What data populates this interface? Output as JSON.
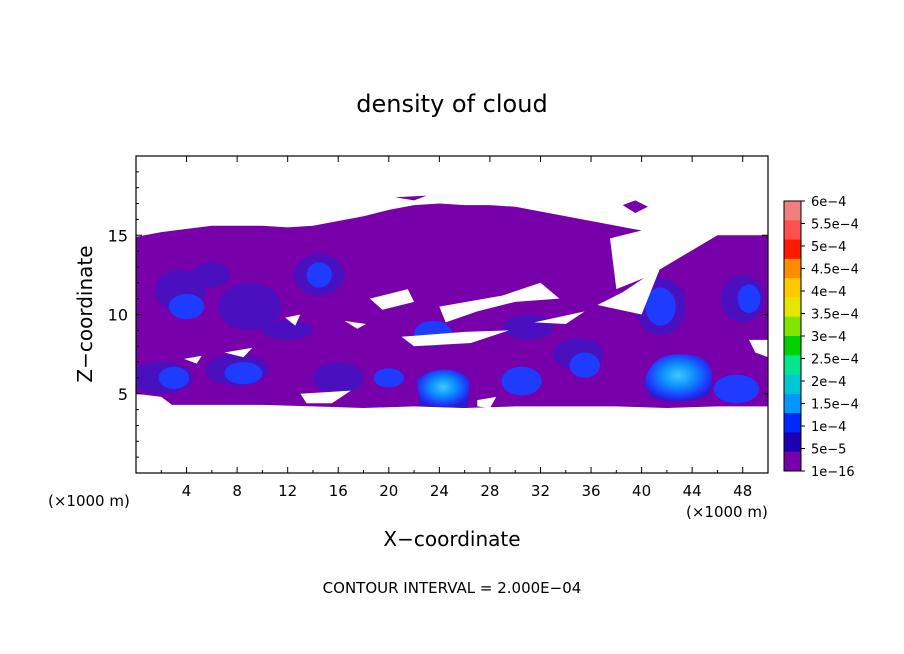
{
  "chart_data": {
    "type": "heatmap",
    "title": "density of cloud",
    "xlabel": "X−coordinate",
    "ylabel": "Z−coordinate",
    "x_unit_left": "(×1000 m)",
    "x_unit_right": "(×1000 m)",
    "xlim": [
      0,
      50
    ],
    "ylim": [
      0,
      20
    ],
    "xticks": [
      4,
      8,
      12,
      16,
      20,
      24,
      28,
      32,
      36,
      40,
      44,
      48
    ],
    "yticks": [
      5,
      10,
      15
    ],
    "footer": "CONTOUR INTERVAL = 2.000E−04",
    "colorbar": {
      "labels": [
        "6e−4",
        "5.5e−4",
        "5e−4",
        "4.5e−4",
        "4e−4",
        "3.5e−4",
        "3e−4",
        "2.5e−4",
        "2e−4",
        "1.5e−4",
        "1e−4",
        "5e−5",
        "1e−16"
      ],
      "colors": [
        "#f08080",
        "#ff5050",
        "#ff1a00",
        "#ff8c00",
        "#ffc800",
        "#e6e600",
        "#80e600",
        "#00d200",
        "#00e68c",
        "#00c8d2",
        "#0096ff",
        "#0028ff",
        "#1e00b4",
        "#7800aa"
      ]
    },
    "cloud_layer": {
      "base_z": 4.3,
      "top_z": 15.0,
      "fill_color": "#7800aa",
      "medium_color": "#4a10c0",
      "dense_color": "#1e3cff",
      "peak_color": "#00a0ff",
      "cores": [
        {
          "x": 24.5,
          "z": 5.5,
          "density": "1.5e−4"
        },
        {
          "x": 43.0,
          "z": 6.2,
          "density": "1.5e−4"
        }
      ]
    }
  }
}
